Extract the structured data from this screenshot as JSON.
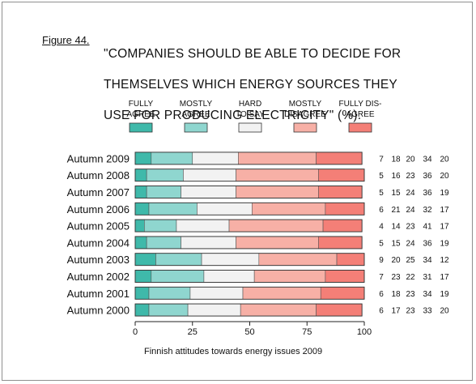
{
  "figure_label": "Figure 44.",
  "title_lines": [
    "\"COMPANIES SHOULD BE ABLE TO DECIDE FOR",
    " THEMSELVES WHICH ENERGY SOURCES THEY",
    " USE FOR PRODUCING ELECTRICITY\" (%)."
  ],
  "caption": "Finnish attitudes towards energy issues 2009",
  "colors": {
    "fully_agree": "#3fb9aa",
    "mostly_agree": "#8fd6cf",
    "hard_to_say": "#f2f2f2",
    "mostly_disagree": "#f7b0a6",
    "fully_disagree": "#f47f77"
  },
  "chart_data": {
    "type": "bar",
    "orientation": "horizontal",
    "stacked": true,
    "xlim": [
      0,
      100
    ],
    "x_ticks": [
      "0",
      "25",
      "50",
      "75",
      "100"
    ],
    "legend": {
      "placement": "top",
      "entries": [
        {
          "lines": [
            "FULLY",
            "AGREE"
          ],
          "color_key": "fully_agree"
        },
        {
          "lines": [
            "MOSTLY",
            "AGREE"
          ],
          "color_key": "mostly_agree"
        },
        {
          "lines": [
            "HARD",
            "TO SAY"
          ],
          "color_key": "hard_to_say"
        },
        {
          "lines": [
            "MOSTLY",
            "DISAGREE"
          ],
          "color_key": "mostly_disagree"
        },
        {
          "lines": [
            "FULLY DIS-",
            "AGREE"
          ],
          "color_key": "fully_disagree"
        }
      ]
    },
    "categories": [
      "Autumn 2009",
      "Autumn 2008",
      "Autumn 2007",
      "Autumn 2006",
      "Autumn 2005",
      "Autumn 2004",
      "Autumn 2003",
      "Autumn 2002",
      "Autumn 2001",
      "Autumn 2000"
    ],
    "series": [
      {
        "color_key": "fully_agree",
        "values": [
          7,
          5,
          5,
          6,
          4,
          5,
          9,
          7,
          6,
          6
        ]
      },
      {
        "color_key": "mostly_agree",
        "values": [
          18,
          16,
          15,
          21,
          14,
          15,
          20,
          23,
          18,
          17
        ]
      },
      {
        "color_key": "hard_to_say",
        "values": [
          20,
          23,
          24,
          24,
          23,
          24,
          25,
          22,
          23,
          23
        ]
      },
      {
        "color_key": "mostly_disagree",
        "values": [
          34,
          36,
          36,
          32,
          41,
          36,
          34,
          31,
          34,
          33
        ]
      },
      {
        "color_key": "fully_disagree",
        "values": [
          20,
          20,
          19,
          17,
          17,
          19,
          12,
          17,
          19,
          20
        ]
      }
    ]
  }
}
